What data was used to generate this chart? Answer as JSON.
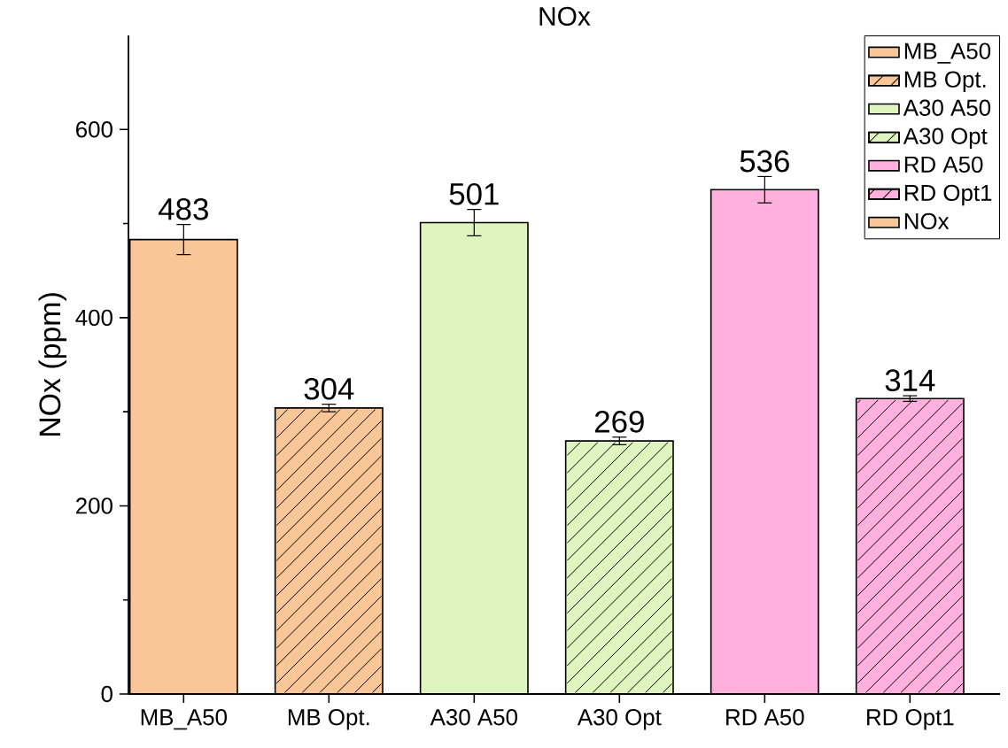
{
  "chart_data": {
    "type": "bar",
    "title": "NOx",
    "ylabel": "NOx (ppm)",
    "categories": [
      "MB_A50",
      "MB Opt.",
      "A30 A50",
      "A30 Opt",
      "RD A50",
      "RD Opt1"
    ],
    "series": [
      {
        "name": "MB_A50",
        "color": "#f9c797",
        "values": [
          483,
          null,
          null,
          null,
          null,
          null
        ],
        "errors": [
          16,
          null,
          null,
          null,
          null,
          null
        ]
      },
      {
        "name": "MB Opt.",
        "color": "#f9c797",
        "values": [
          null,
          304,
          null,
          null,
          null,
          null
        ],
        "errors": [
          null,
          4,
          null,
          null,
          null,
          null
        ]
      },
      {
        "name": "A30 A50",
        "color": "#dff5c0",
        "values": [
          null,
          null,
          501,
          null,
          null,
          null
        ],
        "errors": [
          null,
          null,
          14,
          null,
          null,
          null
        ]
      },
      {
        "name": "A30 Opt",
        "color": "#dff5c0",
        "values": [
          null,
          null,
          null,
          269,
          null,
          null
        ],
        "errors": [
          null,
          null,
          null,
          4,
          null,
          null
        ]
      },
      {
        "name": "RD A50",
        "color": "#ffb0dc",
        "values": [
          null,
          null,
          null,
          null,
          536,
          null
        ],
        "errors": [
          null,
          null,
          null,
          null,
          14,
          null
        ]
      },
      {
        "name": "RD Opt1",
        "color": "#ffb0dc",
        "values": [
          null,
          null,
          null,
          null,
          null,
          314
        ],
        "errors": [
          null,
          null,
          null,
          null,
          null,
          3
        ]
      },
      {
        "name": "NOx",
        "color": "#f9c797",
        "values": [
          null,
          null,
          null,
          null,
          null,
          null
        ]
      }
    ],
    "ylim": [
      0,
      700
    ],
    "yticks": [
      0,
      200,
      400,
      600
    ],
    "data_labels": true,
    "legend": "top right"
  }
}
